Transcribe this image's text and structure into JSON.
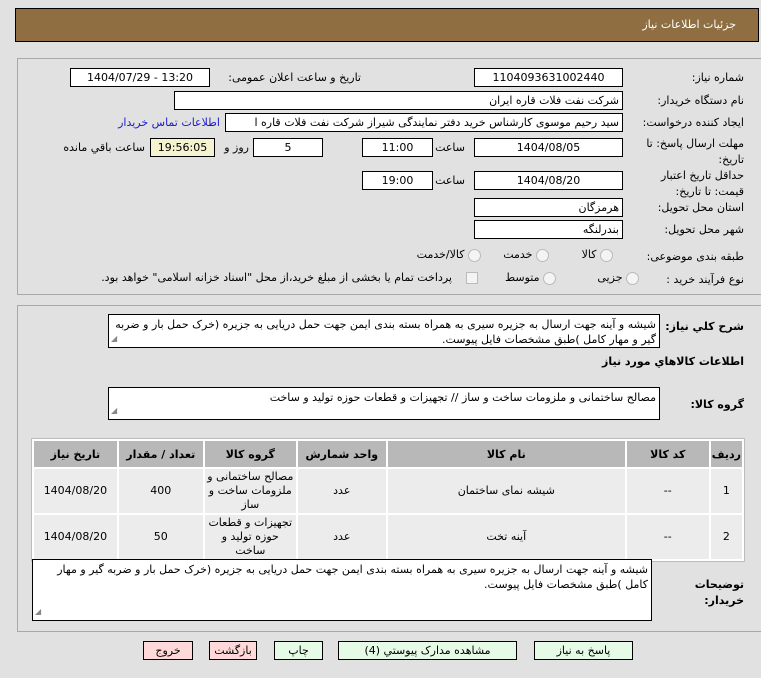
{
  "header": {
    "title": "جزئیات اطلاعات نیاز"
  },
  "form": {
    "need_number_label": "شماره نیاز:",
    "need_number": "1104093631002440",
    "announce_label": "تاریخ و ساعت اعلان عمومی:",
    "announce_value": "1404/07/29 - 13:20",
    "buyer_org_label": "نام دستگاه خریدار:",
    "buyer_org": "شرکت نفت فلات قاره ایران",
    "creator_label": "ایجاد کننده درخواست:",
    "creator": "سید رحیم موسوی کارشناس خرید دفتر نمایندگی شیراز شرکت نفت فلات قاره ا",
    "contact_link": "اطلاعات تماس خریدار",
    "reply_deadline_label": "مهلت ارسال پاسخ: تا تاریخ:",
    "reply_date": "1404/08/05",
    "time_label": "ساعت",
    "reply_time": "11:00",
    "days": "5",
    "days_label": "روز و",
    "remaining": "19:56:05",
    "remaining_label": "ساعت باقي مانده",
    "validity_label": "حداقل تاریخ اعتبار قیمت: تا تاریخ:",
    "validity_date": "1404/08/20",
    "validity_time": "19:00",
    "province_label": "استان محل تحویل:",
    "province": "هرمزگان",
    "city_label": "شهر محل تحویل:",
    "city": "بندرلنگه",
    "category_label": "طبقه بندی موضوعی:",
    "category_options": [
      "کالا",
      "خدمت",
      "کالا/خدمت"
    ],
    "category_selected": "کالا",
    "process_label": "نوع فرآیند خرید :",
    "process_options": [
      "جزیی",
      "متوسط"
    ],
    "payment_note": "پرداخت تمام یا بخشی از مبلغ خرید،از محل \"اسناد خزانه اسلامی\" خواهد بود."
  },
  "details": {
    "description_label": "شرح کلي نياز:",
    "description": "شیشه و آینه جهت ارسال به جزیره سیری به همراه بسته بندی ایمن جهت حمل دریایی به جزیره (خرک حمل بار و ضربه گیر و مهار کامل )طبق مشخصات فایل پیوست.",
    "goods_info_title": "اطلاعات کالاهاي مورد نياز",
    "goods_group_label": "گروه کالا:",
    "goods_group": "مصالح ساختمانی و ملزومات ساخت و ساز // تجهیزات و قطعات حوزه تولید و ساخت"
  },
  "table": {
    "columns": [
      "ردیف",
      "کد کالا",
      "نام کالا",
      "واحد شمارش",
      "گروه کالا",
      "تعداد / مقدار",
      "تاریخ نیاز"
    ],
    "rows": [
      [
        "1",
        "--",
        "شیشه نمای ساختمان",
        "عدد",
        "مصالح ساختمانی و ملزومات ساخت و ساز",
        "400",
        "1404/08/20"
      ],
      [
        "2",
        "--",
        "آینه تخت",
        "عدد",
        "تجهیزات و قطعات حوزه تولید و ساخت",
        "50",
        "1404/08/20"
      ]
    ]
  },
  "notes": {
    "label": "توضیحات خریدار:",
    "text": "شیشه و آینه جهت ارسال به جزیره سیری به همراه بسته بندی ایمن جهت حمل دریایی به جزیره (خرک حمل بار و ضربه گیر و مهار کامل )طبق مشخصات فایل پیوست."
  },
  "buttons": {
    "reply": "پاسخ به نیاز",
    "attachments": "مشاهده مدارک پیوستي (4)",
    "print": "چاپ",
    "back": "بازگشت",
    "exit": "خروج"
  },
  "colors": {
    "header": "#8f6e42",
    "remaining_bg": "#f5f2d0",
    "green_button": "#e6fbe6",
    "red_button": "#ffd9d9",
    "link": "#1a1acc"
  }
}
